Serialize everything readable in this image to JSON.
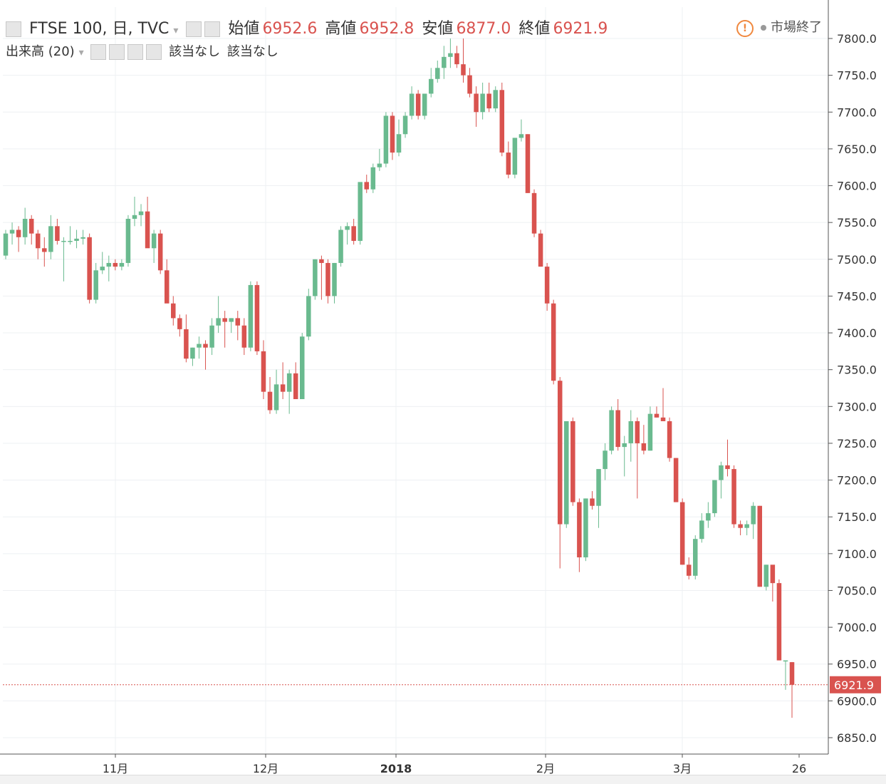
{
  "header": {
    "symbol": "FTSE 100, 日, TVC",
    "open_label": "始値",
    "open_value": "6952.6",
    "high_label": "高値",
    "high_value": "6952.8",
    "low_label": "安値",
    "low_value": "6877.0",
    "close_label": "終値",
    "close_value": "6921.9",
    "market_status": "市場終了",
    "warning_glyph": "!"
  },
  "volume_legend": {
    "label": "出来高 (20)",
    "value1": "該当なし",
    "value2": "該当なし"
  },
  "colors": {
    "up": "#6aba8f",
    "down": "#d9534f",
    "grid": "#eef0f3",
    "price_line": "#d9534f"
  },
  "chart_data": {
    "type": "candlestick",
    "y_axis": {
      "min": 6830,
      "max": 7810,
      "ticks": [
        6850,
        6900,
        6950,
        7000,
        7050,
        7100,
        7150,
        7200,
        7250,
        7300,
        7350,
        7400,
        7450,
        7500,
        7550,
        7600,
        7650,
        7700,
        7750,
        7800
      ],
      "position": "right"
    },
    "x_axis_labels": [
      "11月",
      "12月",
      "2018",
      "2月",
      "3月",
      "26"
    ],
    "last_price": 6921.9,
    "last_price_label": "6921.9",
    "candles": [
      [
        7505,
        7540,
        7500,
        7535
      ],
      [
        7535,
        7550,
        7520,
        7540
      ],
      [
        7540,
        7545,
        7510,
        7530
      ],
      [
        7530,
        7570,
        7520,
        7555
      ],
      [
        7555,
        7560,
        7520,
        7535
      ],
      [
        7535,
        7540,
        7500,
        7515
      ],
      [
        7515,
        7530,
        7490,
        7510
      ],
      [
        7510,
        7560,
        7500,
        7545
      ],
      [
        7545,
        7555,
        7520,
        7525
      ],
      [
        7525,
        7530,
        7470,
        7525
      ],
      [
        7525,
        7545,
        7520,
        7525
      ],
      [
        7525,
        7540,
        7515,
        7528
      ],
      [
        7528,
        7540,
        7520,
        7530
      ],
      [
        7530,
        7535,
        7440,
        7445
      ],
      [
        7445,
        7495,
        7440,
        7485
      ],
      [
        7485,
        7510,
        7480,
        7490
      ],
      [
        7490,
        7505,
        7470,
        7495
      ],
      [
        7495,
        7500,
        7485,
        7490
      ],
      [
        7490,
        7500,
        7485,
        7495
      ],
      [
        7495,
        7560,
        7490,
        7555
      ],
      [
        7555,
        7585,
        7545,
        7560
      ],
      [
        7560,
        7575,
        7545,
        7565
      ],
      [
        7565,
        7585,
        7520,
        7515
      ],
      [
        7515,
        7540,
        7495,
        7535
      ],
      [
        7535,
        7540,
        7480,
        7485
      ],
      [
        7485,
        7500,
        7445,
        7440
      ],
      [
        7440,
        7450,
        7410,
        7420
      ],
      [
        7420,
        7425,
        7395,
        7405
      ],
      [
        7405,
        7425,
        7360,
        7365
      ],
      [
        7365,
        7380,
        7355,
        7380
      ],
      [
        7380,
        7395,
        7365,
        7385
      ],
      [
        7385,
        7390,
        7350,
        7380
      ],
      [
        7380,
        7420,
        7370,
        7410
      ],
      [
        7410,
        7450,
        7400,
        7420
      ],
      [
        7420,
        7430,
        7380,
        7415
      ],
      [
        7415,
        7420,
        7400,
        7420
      ],
      [
        7420,
        7430,
        7390,
        7410
      ],
      [
        7410,
        7420,
        7370,
        7380
      ],
      [
        7380,
        7470,
        7375,
        7465
      ],
      [
        7465,
        7470,
        7370,
        7375
      ],
      [
        7375,
        7390,
        7310,
        7320
      ],
      [
        7320,
        7340,
        7290,
        7295
      ],
      [
        7295,
        7350,
        7290,
        7330
      ],
      [
        7330,
        7360,
        7310,
        7320
      ],
      [
        7320,
        7350,
        7290,
        7345
      ],
      [
        7345,
        7360,
        7310,
        7310
      ],
      [
        7310,
        7400,
        7310,
        7395
      ],
      [
        7395,
        7460,
        7390,
        7450
      ],
      [
        7450,
        7500,
        7445,
        7500
      ],
      [
        7500,
        7505,
        7445,
        7495
      ],
      [
        7495,
        7500,
        7440,
        7450
      ],
      [
        7450,
        7495,
        7440,
        7495
      ],
      [
        7495,
        7545,
        7490,
        7540
      ],
      [
        7540,
        7550,
        7520,
        7545
      ],
      [
        7545,
        7555,
        7520,
        7525
      ],
      [
        7525,
        7600,
        7520,
        7605
      ],
      [
        7605,
        7615,
        7590,
        7595
      ],
      [
        7595,
        7630,
        7590,
        7625
      ],
      [
        7625,
        7650,
        7620,
        7630
      ],
      [
        7630,
        7700,
        7625,
        7695
      ],
      [
        7695,
        7700,
        7635,
        7645
      ],
      [
        7645,
        7690,
        7640,
        7670
      ],
      [
        7670,
        7700,
        7665,
        7695
      ],
      [
        7695,
        7735,
        7690,
        7725
      ],
      [
        7725,
        7730,
        7690,
        7695
      ],
      [
        7695,
        7720,
        7690,
        7725
      ],
      [
        7725,
        7760,
        7720,
        7745
      ],
      [
        7745,
        7770,
        7740,
        7760
      ],
      [
        7760,
        7790,
        7745,
        7775
      ],
      [
        7775,
        7800,
        7760,
        7780
      ],
      [
        7780,
        7790,
        7760,
        7765
      ],
      [
        7765,
        7800,
        7740,
        7750
      ],
      [
        7750,
        7760,
        7720,
        7725
      ],
      [
        7725,
        7735,
        7680,
        7700
      ],
      [
        7700,
        7740,
        7690,
        7725
      ],
      [
        7725,
        7740,
        7700,
        7705
      ],
      [
        7705,
        7735,
        7700,
        7730
      ],
      [
        7730,
        7740,
        7640,
        7645
      ],
      [
        7645,
        7660,
        7610,
        7615
      ],
      [
        7615,
        7665,
        7610,
        7665
      ],
      [
        7665,
        7690,
        7660,
        7670
      ],
      [
        7670,
        7670,
        7590,
        7590
      ],
      [
        7590,
        7595,
        7530,
        7535
      ],
      [
        7535,
        7540,
        7490,
        7490
      ],
      [
        7490,
        7495,
        7430,
        7440
      ],
      [
        7440,
        7445,
        7330,
        7335
      ],
      [
        7335,
        7340,
        7080,
        7140
      ],
      [
        7140,
        7280,
        7135,
        7280
      ],
      [
        7280,
        7285,
        7165,
        7170
      ],
      [
        7170,
        7175,
        7075,
        7095
      ],
      [
        7095,
        7175,
        7090,
        7175
      ],
      [
        7175,
        7185,
        7160,
        7165
      ],
      [
        7165,
        7210,
        7135,
        7215
      ],
      [
        7215,
        7250,
        7200,
        7240
      ],
      [
        7240,
        7300,
        7235,
        7295
      ],
      [
        7295,
        7310,
        7240,
        7245
      ],
      [
        7245,
        7260,
        7205,
        7250
      ],
      [
        7250,
        7295,
        7225,
        7280
      ],
      [
        7280,
        7285,
        7175,
        7250
      ],
      [
        7250,
        7275,
        7235,
        7240
      ],
      [
        7240,
        7300,
        7240,
        7290
      ],
      [
        7290,
        7300,
        7285,
        7285
      ],
      [
        7285,
        7325,
        7280,
        7280
      ],
      [
        7280,
        7285,
        7225,
        7230
      ],
      [
        7230,
        7230,
        7170,
        7170
      ],
      [
        7170,
        7175,
        7085,
        7085
      ],
      [
        7085,
        7095,
        7065,
        7070
      ],
      [
        7070,
        7125,
        7065,
        7120
      ],
      [
        7120,
        7155,
        7115,
        7145
      ],
      [
        7145,
        7170,
        7135,
        7155
      ],
      [
        7155,
        7200,
        7150,
        7200
      ],
      [
        7200,
        7225,
        7175,
        7220
      ],
      [
        7220,
        7255,
        7205,
        7215
      ],
      [
        7215,
        7220,
        7135,
        7140
      ],
      [
        7140,
        7145,
        7125,
        7135
      ],
      [
        7135,
        7145,
        7125,
        7140
      ],
      [
        7140,
        7170,
        7120,
        7165
      ],
      [
        7165,
        7165,
        7055,
        7055
      ],
      [
        7055,
        7085,
        7050,
        7085
      ],
      [
        7085,
        7080,
        7035,
        7060
      ],
      [
        7060,
        7065,
        6955,
        6955
      ],
      [
        6955,
        6955,
        6915,
        6955
      ],
      [
        6952.6,
        6952.8,
        6877,
        6921.9
      ]
    ]
  }
}
